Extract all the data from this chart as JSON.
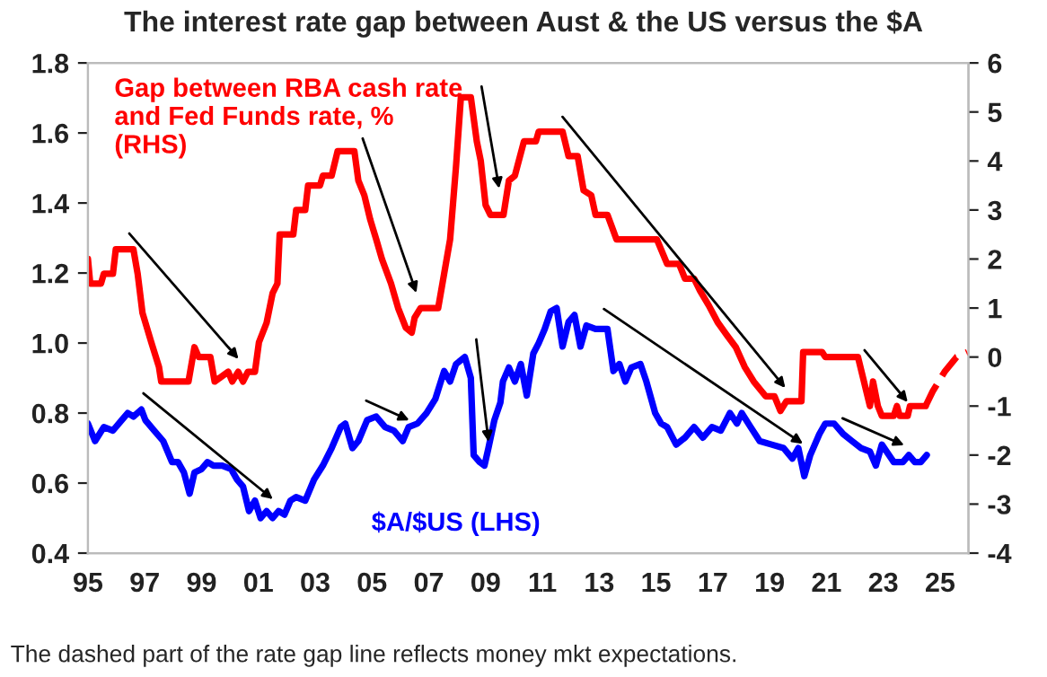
{
  "chart_data": {
    "type": "line",
    "title": "The interest rate gap between Aust & the US versus the $A",
    "annotations": [
      "The dashed part of the rate gap line reflects money mkt expectations."
    ],
    "xlim": [
      1995,
      2026
    ],
    "xticks": [
      {
        "value": 1995,
        "label": "95"
      },
      {
        "value": 1997,
        "label": "97"
      },
      {
        "value": 1999,
        "label": "99"
      },
      {
        "value": 2001,
        "label": "01"
      },
      {
        "value": 2003,
        "label": "03"
      },
      {
        "value": 2005,
        "label": "05"
      },
      {
        "value": 2007,
        "label": "07"
      },
      {
        "value": 2009,
        "label": "09"
      },
      {
        "value": 2011,
        "label": "11"
      },
      {
        "value": 2013,
        "label": "13"
      },
      {
        "value": 2015,
        "label": "15"
      },
      {
        "value": 2017,
        "label": "17"
      },
      {
        "value": 2019,
        "label": "19"
      },
      {
        "value": 2021,
        "label": "21"
      },
      {
        "value": 2023,
        "label": "23"
      },
      {
        "value": 2025,
        "label": "25"
      }
    ],
    "ylim": [
      0.4,
      1.8
    ],
    "yticks": [
      {
        "value": 0.4,
        "label": "0.4"
      },
      {
        "value": 0.6,
        "label": "0.6"
      },
      {
        "value": 0.8,
        "label": "0.8"
      },
      {
        "value": 1.0,
        "label": "1.0"
      },
      {
        "value": 1.2,
        "label": "1.2"
      },
      {
        "value": 1.4,
        "label": "1.4"
      },
      {
        "value": 1.6,
        "label": "1.6"
      },
      {
        "value": 1.8,
        "label": "1.8"
      }
    ],
    "y2lim": [
      -4,
      6
    ],
    "y2ticks": [
      -4,
      -3,
      -2,
      -1,
      0,
      1,
      2,
      3,
      4,
      5,
      6
    ],
    "grid": false,
    "marker": "none",
    "series": [
      {
        "name": "Gap between RBA cash rate and Fed Funds rate, % (RHS)",
        "color": "#ff0000",
        "axis": "y2",
        "line_style": "solid",
        "x": [
          1995.0,
          1995.08,
          1995.46,
          1995.56,
          1995.88,
          1995.98,
          1996.6,
          1996.75,
          1996.92,
          1997.23,
          1997.5,
          1997.58,
          1998.54,
          1998.75,
          1998.9,
          1999.31,
          1999.46,
          1999.94,
          2000.08,
          2000.29,
          2000.46,
          2000.63,
          2000.88,
          2001.02,
          2001.29,
          2001.5,
          2001.67,
          2001.75,
          2002.23,
          2002.33,
          2002.65,
          2002.75,
          2003.17,
          2003.27,
          2003.58,
          2003.79,
          2004.38,
          2004.52,
          2004.73,
          2004.94,
          2005.15,
          2005.35,
          2005.67,
          2005.92,
          2006.19,
          2006.4,
          2006.5,
          2006.71,
          2007.33,
          2007.54,
          2007.75,
          2007.96,
          2008.13,
          2008.48,
          2008.69,
          2008.83,
          2009.0,
          2009.17,
          2009.63,
          2009.82,
          2010.03,
          2010.35,
          2010.77,
          2010.87,
          2011.71,
          2011.92,
          2012.24,
          2012.45,
          2012.72,
          2012.87,
          2013.29,
          2013.61,
          2015.03,
          2015.39,
          2015.81,
          2016.02,
          2016.34,
          2016.55,
          2016.86,
          2017.18,
          2017.49,
          2017.81,
          2018.12,
          2018.44,
          2018.86,
          2019.17,
          2019.38,
          2019.59,
          2020.12,
          2020.18,
          2020.85,
          2020.96,
          2022.11,
          2022.32,
          2022.53,
          2022.64,
          2022.81,
          2022.95,
          2023.37,
          2023.48,
          2023.58,
          2023.86,
          2023.94,
          2024.49
        ],
        "values": [
          2.0,
          1.5,
          1.5,
          1.7,
          1.7,
          2.2,
          2.2,
          1.7,
          0.9,
          0.3,
          -0.2,
          -0.5,
          -0.5,
          0.2,
          0.0,
          0.0,
          -0.5,
          -0.3,
          -0.5,
          -0.3,
          -0.5,
          -0.3,
          -0.3,
          0.3,
          0.7,
          1.3,
          1.5,
          2.5,
          2.5,
          3.0,
          3.0,
          3.5,
          3.5,
          3.7,
          3.7,
          4.2,
          4.2,
          3.6,
          3.3,
          2.8,
          2.4,
          2.0,
          1.5,
          1.0,
          0.6,
          0.5,
          0.8,
          1.0,
          1.0,
          1.7,
          2.4,
          3.9,
          5.3,
          5.3,
          4.4,
          4.0,
          3.1,
          2.9,
          2.9,
          3.6,
          3.7,
          4.4,
          4.4,
          4.6,
          4.6,
          4.1,
          4.1,
          3.4,
          3.3,
          2.9,
          2.9,
          2.4,
          2.4,
          1.9,
          1.9,
          1.6,
          1.6,
          1.35,
          1.05,
          0.7,
          0.45,
          0.2,
          -0.2,
          -0.5,
          -0.8,
          -0.8,
          -1.1,
          -0.9,
          -0.9,
          0.1,
          0.1,
          0.0,
          0.0,
          -0.5,
          -1.0,
          -0.5,
          -1.0,
          -1.2,
          -1.2,
          -1.0,
          -1.2,
          -1.2,
          -1.0,
          -1.0
        ]
      },
      {
        "color": "#ff0000",
        "axis": "y2",
        "line_style": "dashed",
        "x": [
          2024.49,
          2024.74,
          2025.16,
          2025.58,
          2025.96
        ],
        "values": [
          -1.0,
          -0.7,
          -0.3,
          0.0,
          0.1
        ]
      },
      {
        "name": "$A/$US (LHS)",
        "color": "#0000ff",
        "axis": "y",
        "line_style": "solid",
        "x": [
          1995.0,
          1995.25,
          1995.56,
          1995.88,
          1996.19,
          1996.4,
          1996.6,
          1996.88,
          1997.02,
          1997.33,
          1997.65,
          1997.96,
          1998.17,
          1998.38,
          1998.58,
          1998.75,
          1999.0,
          1999.21,
          1999.42,
          1999.73,
          2000.04,
          2000.25,
          2000.46,
          2000.67,
          2000.88,
          2001.08,
          2001.29,
          2001.5,
          2001.71,
          2001.92,
          2002.13,
          2002.33,
          2002.65,
          2002.96,
          2003.27,
          2003.58,
          2003.9,
          2004.06,
          2004.31,
          2004.52,
          2004.83,
          2005.15,
          2005.46,
          2005.77,
          2006.08,
          2006.29,
          2006.6,
          2006.92,
          2007.23,
          2007.54,
          2007.75,
          2007.96,
          2008.27,
          2008.48,
          2008.58,
          2008.79,
          2008.96,
          2009.1,
          2009.31,
          2009.52,
          2009.61,
          2009.82,
          2010.03,
          2010.24,
          2010.45,
          2010.68,
          2010.87,
          2011.08,
          2011.29,
          2011.5,
          2011.71,
          2011.92,
          2012.13,
          2012.34,
          2012.55,
          2012.87,
          2013.29,
          2013.5,
          2013.71,
          2013.92,
          2014.13,
          2014.45,
          2014.66,
          2014.97,
          2015.18,
          2015.39,
          2015.71,
          2016.02,
          2016.34,
          2016.65,
          2016.97,
          2017.28,
          2017.6,
          2017.85,
          2018.02,
          2018.33,
          2018.65,
          2019.07,
          2019.49,
          2019.8,
          2020.01,
          2020.22,
          2020.43,
          2020.75,
          2020.96,
          2021.27,
          2021.59,
          2021.9,
          2022.22,
          2022.53,
          2022.74,
          2022.95,
          2023.37,
          2023.69,
          2023.9,
          2024.11,
          2024.32,
          2024.53
        ],
        "values": [
          0.77,
          0.72,
          0.76,
          0.75,
          0.78,
          0.8,
          0.79,
          0.81,
          0.78,
          0.75,
          0.72,
          0.66,
          0.66,
          0.63,
          0.57,
          0.63,
          0.64,
          0.66,
          0.65,
          0.65,
          0.64,
          0.61,
          0.59,
          0.52,
          0.55,
          0.5,
          0.52,
          0.5,
          0.52,
          0.51,
          0.55,
          0.56,
          0.55,
          0.61,
          0.65,
          0.7,
          0.76,
          0.77,
          0.7,
          0.72,
          0.78,
          0.79,
          0.76,
          0.75,
          0.72,
          0.76,
          0.77,
          0.8,
          0.84,
          0.92,
          0.89,
          0.94,
          0.96,
          0.9,
          0.68,
          0.66,
          0.65,
          0.7,
          0.78,
          0.83,
          0.89,
          0.93,
          0.89,
          0.94,
          0.85,
          0.97,
          1.0,
          1.04,
          1.09,
          1.1,
          0.99,
          1.06,
          1.08,
          0.99,
          1.05,
          1.04,
          1.04,
          0.92,
          0.94,
          0.89,
          0.93,
          0.94,
          0.89,
          0.8,
          0.77,
          0.76,
          0.71,
          0.73,
          0.76,
          0.73,
          0.76,
          0.75,
          0.8,
          0.77,
          0.8,
          0.76,
          0.72,
          0.71,
          0.7,
          0.67,
          0.7,
          0.62,
          0.68,
          0.74,
          0.77,
          0.77,
          0.74,
          0.72,
          0.7,
          0.69,
          0.65,
          0.71,
          0.66,
          0.66,
          0.68,
          0.66,
          0.66,
          0.68
        ]
      }
    ]
  }
}
